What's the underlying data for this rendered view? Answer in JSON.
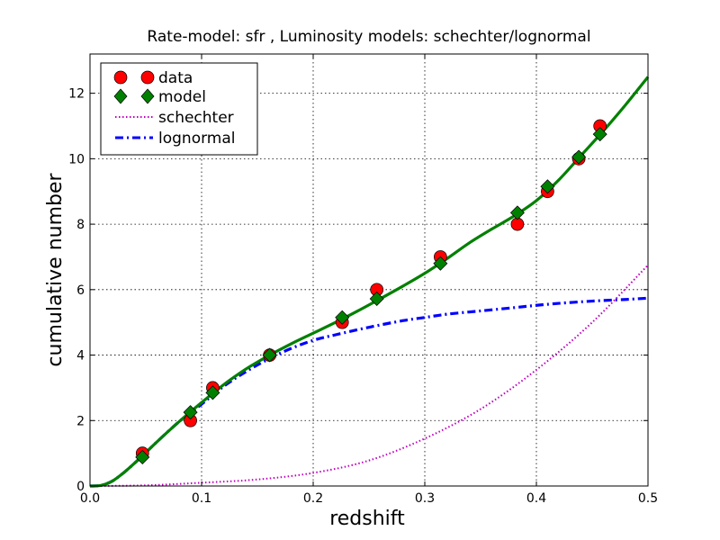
{
  "chart_data": {
    "type": "line",
    "title": "Rate-model: sfr , Luminosity models: schechter/lognormal",
    "xlabel": "redshift",
    "ylabel": "cumulative number",
    "xlim": [
      0.0,
      0.5
    ],
    "ylim": [
      0,
      13.2
    ],
    "grid": true,
    "legend_position": "top-left",
    "x_ticks": [
      0.0,
      0.1,
      0.2,
      0.3,
      0.4,
      0.5
    ],
    "x_tick_labels": [
      "0.0",
      "0.1",
      "0.2",
      "0.3",
      "0.4",
      "0.5"
    ],
    "y_ticks": [
      0,
      2,
      4,
      6,
      8,
      10,
      12
    ],
    "y_tick_labels": [
      "0",
      "2",
      "4",
      "6",
      "8",
      "10",
      "12"
    ],
    "legend": [
      "data",
      "model",
      "schechter",
      "lognormal"
    ],
    "series": [
      {
        "name": "data",
        "kind": "markers",
        "marker": "circle",
        "color": "#ff0000",
        "x": [
          0.047,
          0.09,
          0.11,
          0.161,
          0.226,
          0.257,
          0.314,
          0.383,
          0.41,
          0.438,
          0.457
        ],
        "y": [
          1,
          2,
          3,
          4,
          5,
          6,
          7,
          8,
          9,
          10,
          11
        ]
      },
      {
        "name": "model",
        "kind": "markers",
        "marker": "diamond",
        "color": "#008000",
        "x": [
          0.047,
          0.09,
          0.11,
          0.161,
          0.226,
          0.257,
          0.314,
          0.383,
          0.41,
          0.438,
          0.457
        ],
        "y": [
          0.88,
          2.25,
          2.85,
          4.0,
          5.15,
          5.72,
          6.8,
          8.35,
          9.15,
          10.05,
          10.75
        ]
      },
      {
        "name": "model-curve",
        "kind": "line",
        "style": "solid",
        "color": "#008000",
        "x": [
          0,
          0.01,
          0.02,
          0.03,
          0.04,
          0.05,
          0.06,
          0.08,
          0.1,
          0.12,
          0.14,
          0.16,
          0.18,
          0.2,
          0.22,
          0.24,
          0.26,
          0.28,
          0.3,
          0.32,
          0.34,
          0.36,
          0.38,
          0.4,
          0.42,
          0.44,
          0.46,
          0.48,
          0.5
        ],
        "y": [
          0,
          0.02,
          0.15,
          0.4,
          0.7,
          1.02,
          1.35,
          1.97,
          2.55,
          3.1,
          3.58,
          3.98,
          4.34,
          4.67,
          5.0,
          5.35,
          5.72,
          6.1,
          6.5,
          6.95,
          7.43,
          7.85,
          8.25,
          8.72,
          9.35,
          10.1,
          10.85,
          11.65,
          12.5
        ]
      },
      {
        "name": "schechter",
        "kind": "line",
        "style": "dotted",
        "color": "#bf00bf",
        "x": [
          0,
          0.05,
          0.1,
          0.15,
          0.2,
          0.25,
          0.3,
          0.35,
          0.4,
          0.45,
          0.5
        ],
        "y": [
          0,
          0.02,
          0.1,
          0.2,
          0.4,
          0.78,
          1.45,
          2.35,
          3.55,
          5.0,
          6.75
        ]
      },
      {
        "name": "lognormal",
        "kind": "line",
        "style": "dashdot",
        "color": "#0000ff",
        "x": [
          0,
          0.01,
          0.02,
          0.03,
          0.04,
          0.05,
          0.06,
          0.08,
          0.1,
          0.12,
          0.14,
          0.16,
          0.18,
          0.2,
          0.22,
          0.25,
          0.28,
          0.3,
          0.32,
          0.35,
          0.38,
          0.4,
          0.42,
          0.45,
          0.48,
          0.5
        ],
        "y": [
          0,
          0.02,
          0.15,
          0.4,
          0.7,
          1.02,
          1.35,
          1.97,
          2.5,
          3.05,
          3.5,
          3.88,
          4.2,
          4.45,
          4.62,
          4.85,
          5.05,
          5.15,
          5.25,
          5.35,
          5.45,
          5.52,
          5.58,
          5.65,
          5.7,
          5.74
        ]
      }
    ]
  }
}
